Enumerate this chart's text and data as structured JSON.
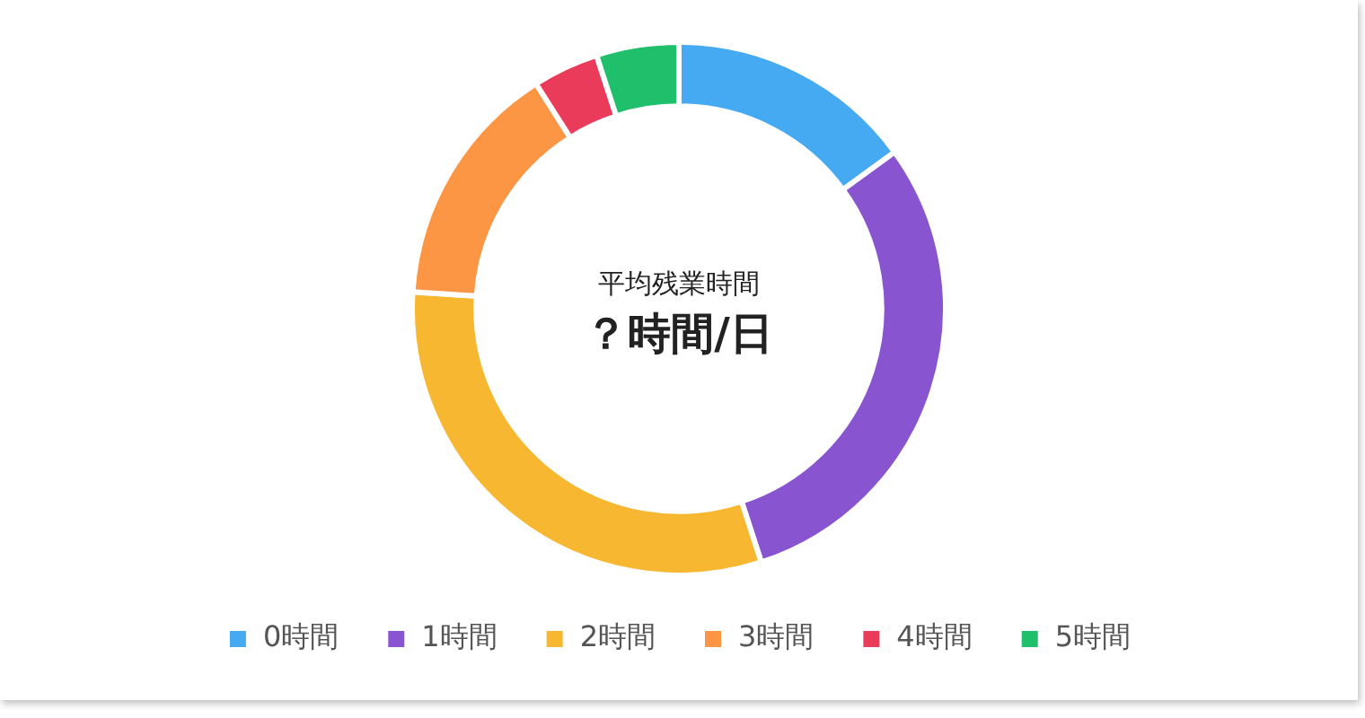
{
  "chart_data": {
    "type": "donut",
    "title": "平均残業時間",
    "subtitle": "？時間/日",
    "categories": [
      "0時間",
      "1時間",
      "2時間",
      "3時間",
      "4時間",
      "5時間"
    ],
    "values": [
      15,
      30,
      31,
      15,
      4,
      5
    ],
    "colors": [
      "#45aaf2",
      "#8854d0",
      "#f7b731",
      "#fd9644",
      "#eb3b5a",
      "#20bf6b"
    ],
    "legend": "bottom"
  }
}
